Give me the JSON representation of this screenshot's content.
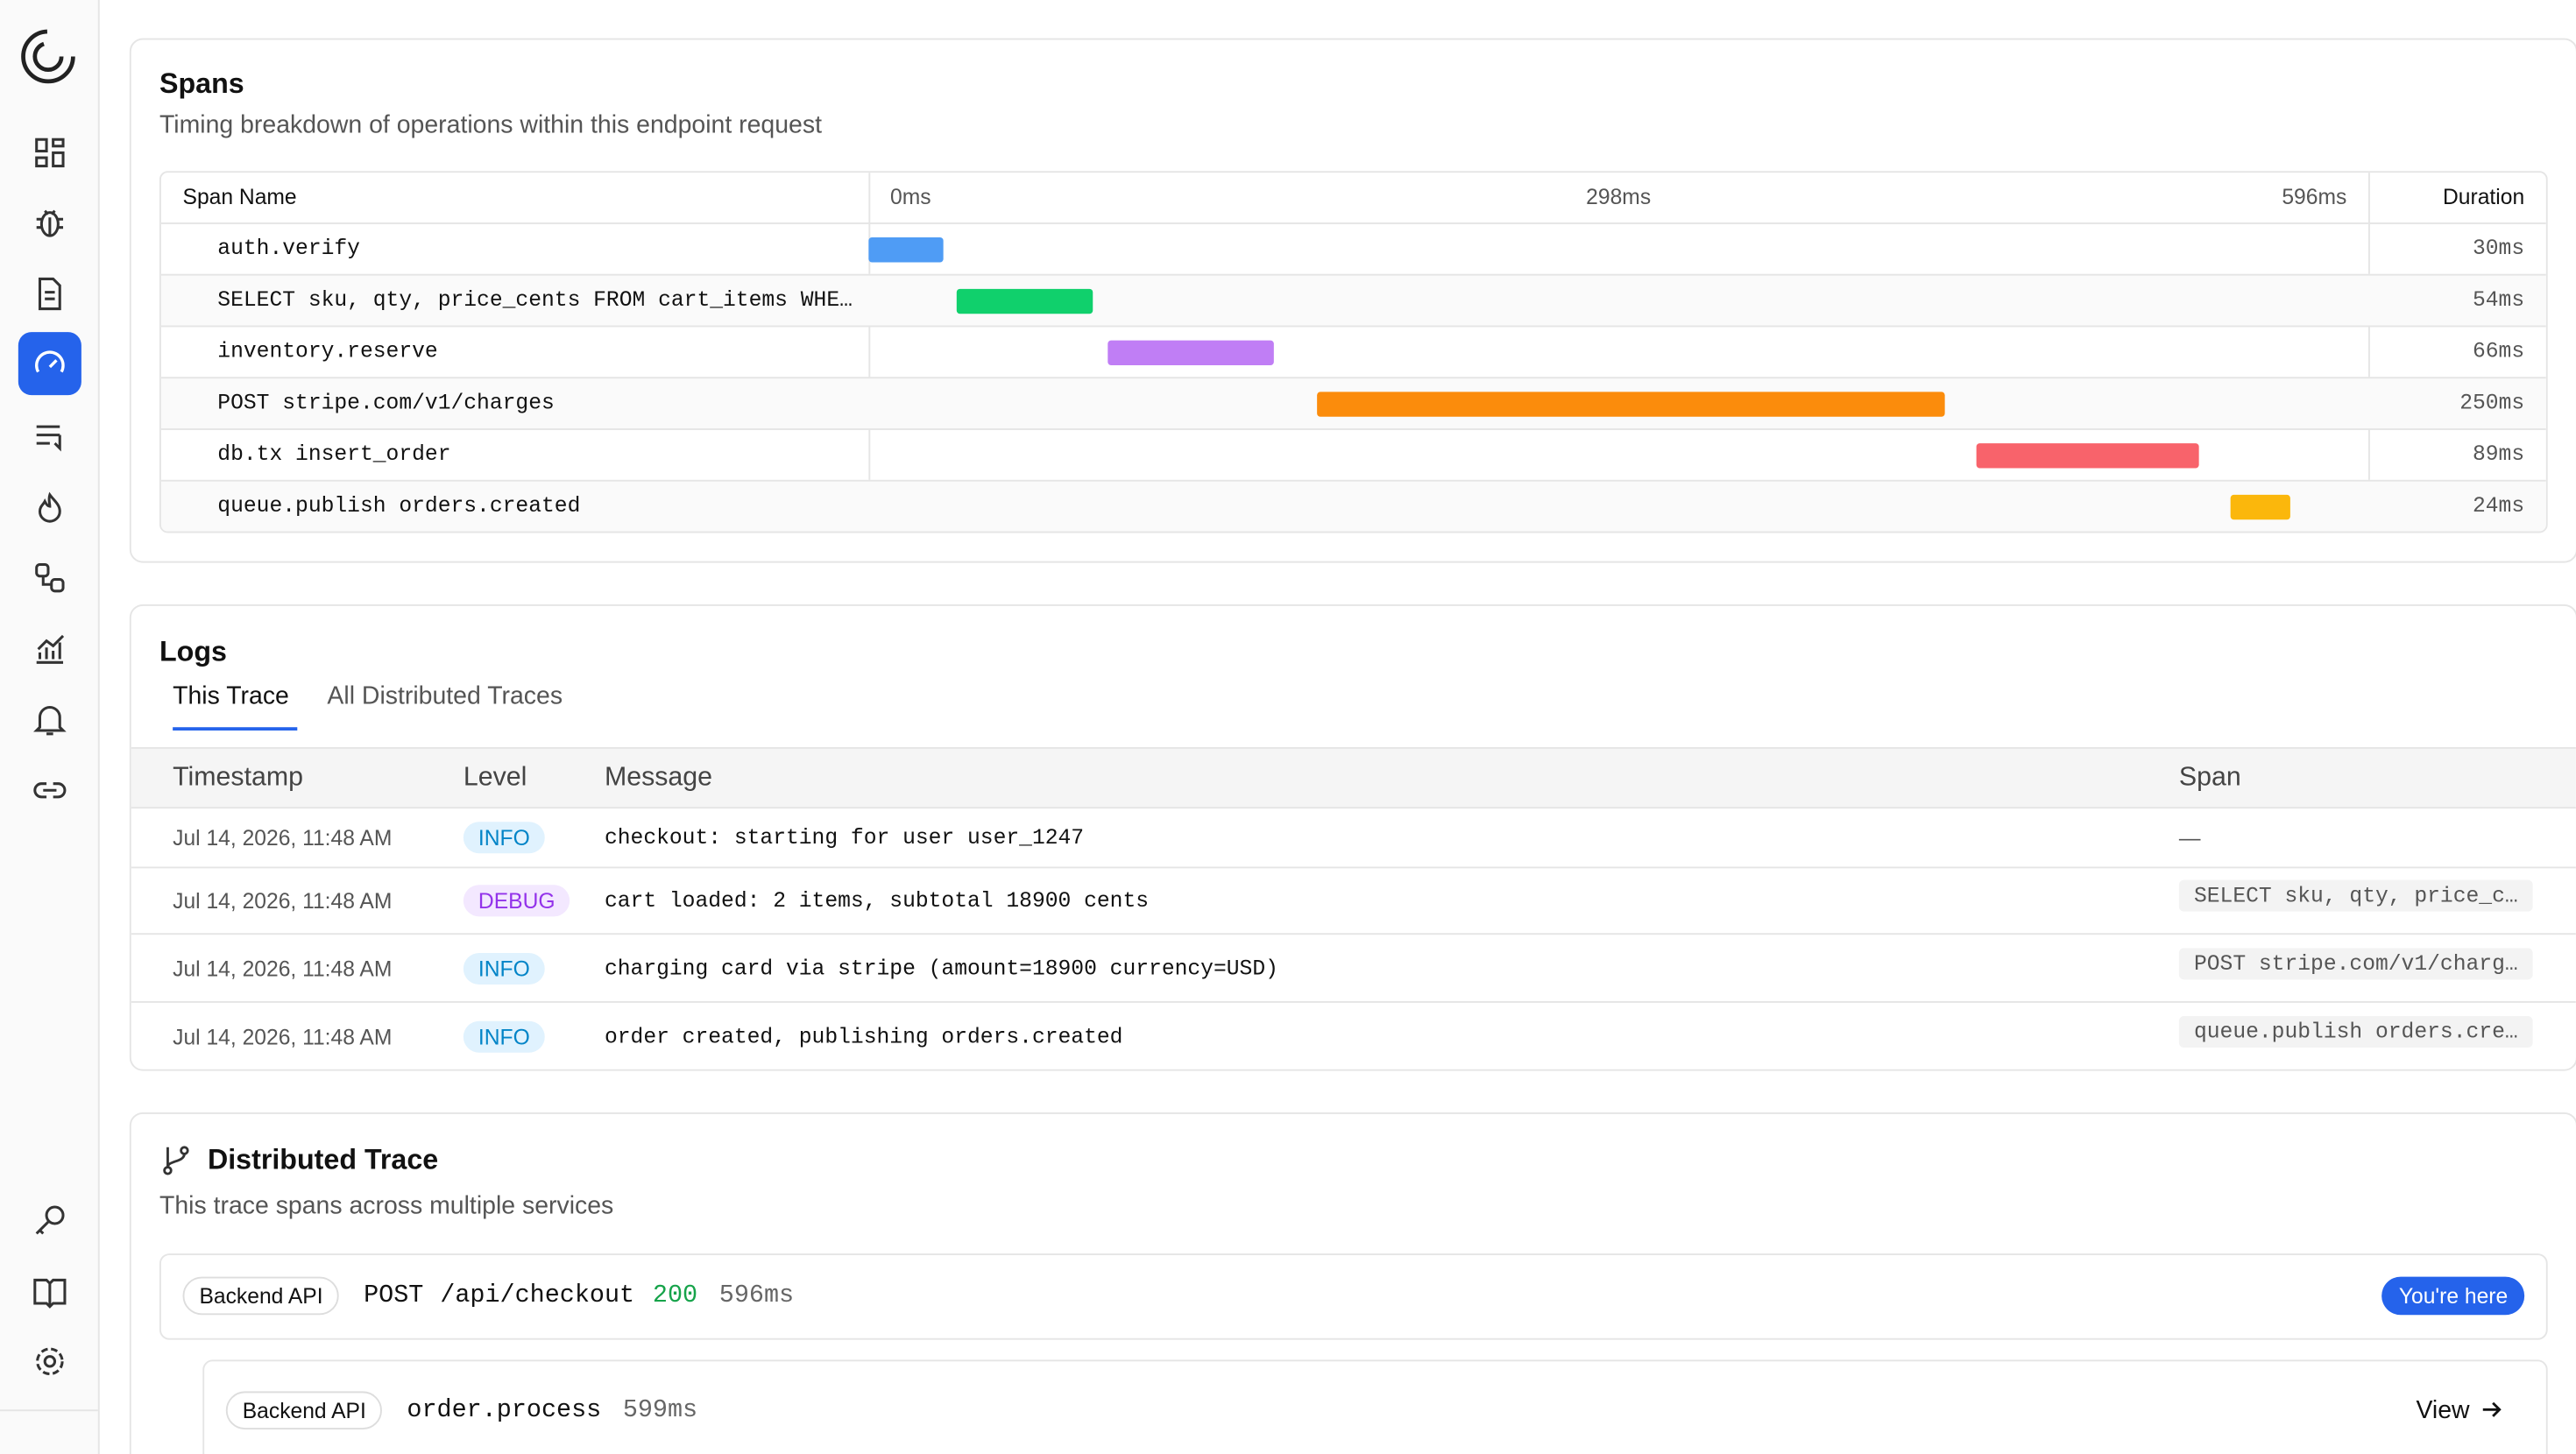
{
  "spans": {
    "title": "Spans",
    "subtitle": "Timing breakdown of operations within this endpoint request",
    "columns": {
      "name": "Span Name",
      "duration": "Duration"
    },
    "timeline": {
      "xlim": [
        0,
        596
      ],
      "ticks": [
        {
          "value": 0,
          "label": "0ms"
        },
        {
          "value": 298,
          "label": "298ms"
        },
        {
          "value": 596,
          "label": "596ms"
        }
      ]
    },
    "rows": [
      {
        "name": "auth.verify",
        "start": 0,
        "duration": 30,
        "duration_label": "30ms",
        "color": "#4f9cf5"
      },
      {
        "name": "SELECT sku, qty, price_cents FROM cart_items WHE…",
        "start": 35,
        "duration": 54,
        "duration_label": "54ms",
        "color": "#10d06c"
      },
      {
        "name": "inventory.reserve",
        "start": 95,
        "duration": 66,
        "duration_label": "66ms",
        "color": "#c07ef5"
      },
      {
        "name": "POST stripe.com/v1/charges",
        "start": 178,
        "duration": 250,
        "duration_label": "250ms",
        "color": "#fb8c0c"
      },
      {
        "name": "db.tx insert_order",
        "start": 440,
        "duration": 89,
        "duration_label": "89ms",
        "color": "#f8636b"
      },
      {
        "name": "queue.publish orders.created",
        "start": 541,
        "duration": 24,
        "duration_label": "24ms",
        "color": "#fbb70c"
      }
    ]
  },
  "logs": {
    "title": "Logs",
    "tabs": [
      "This Trace",
      "All Distributed Traces"
    ],
    "columns": [
      "Timestamp",
      "Level",
      "Message",
      "Span"
    ],
    "rows": [
      {
        "timestamp": "Jul 14, 2026, 11:48 AM",
        "level": "INFO",
        "message": "checkout: starting for user user_1247",
        "span": "—"
      },
      {
        "timestamp": "Jul 14, 2026, 11:48 AM",
        "level": "DEBUG",
        "message": "cart loaded: 2 items, subtotal 18900 cents",
        "span": "SELECT sku, qty, price_c…"
      },
      {
        "timestamp": "Jul 14, 2026, 11:48 AM",
        "level": "INFO",
        "message": "charging card via stripe (amount=18900 currency=USD)",
        "span": "POST stripe.com/v1/charg…"
      },
      {
        "timestamp": "Jul 14, 2026, 11:48 AM",
        "level": "INFO",
        "message": "order created, publishing orders.created",
        "span": "queue.publish orders.cre…"
      }
    ]
  },
  "distributed": {
    "title": "Distributed Trace",
    "subtitle": "This trace spans across multiple services",
    "current": {
      "service": "Backend API",
      "method": "POST",
      "path": "/api/checkout",
      "status": "200",
      "duration": "596ms",
      "badge": "You're here"
    },
    "child": {
      "service": "Backend API",
      "name": "order.process",
      "duration": "599ms",
      "action": "View"
    }
  }
}
